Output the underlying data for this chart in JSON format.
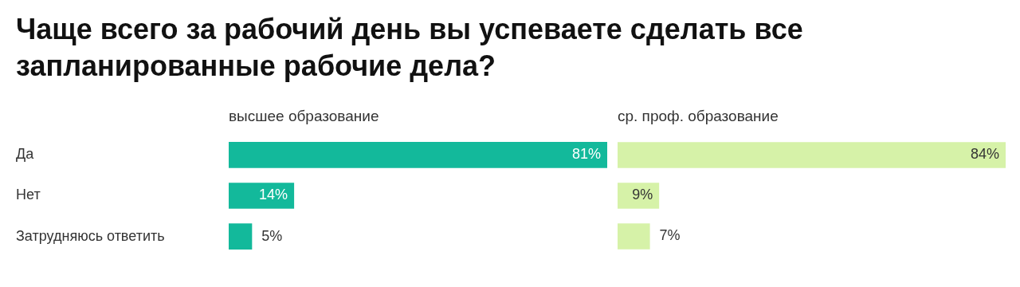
{
  "chart_data": [
    {
      "type": "bar",
      "orientation": "horizontal",
      "title": "Чаще всего за рабочий день вы успеваете сделать все запланированные рабочие дела?",
      "subtitle": "высшее образование",
      "categories": [
        "Да",
        "Нет",
        "Затрудняюсь ответить"
      ],
      "values": [
        81,
        14,
        5
      ],
      "color": "#13b99b",
      "value_labels": [
        "81%",
        "14%",
        "5%"
      ],
      "xlim": [
        0,
        81
      ],
      "tick_labels": "y"
    },
    {
      "type": "bar",
      "orientation": "horizontal",
      "subtitle": "ср. проф. образование",
      "categories": [
        null,
        null,
        null
      ],
      "values": [
        84,
        9,
        7
      ],
      "color": "#d6f2a8",
      "value_labels": [
        "84%",
        "9%",
        "7%"
      ],
      "xlim": [
        0,
        84
      ],
      "tick_labels": false
    }
  ]
}
